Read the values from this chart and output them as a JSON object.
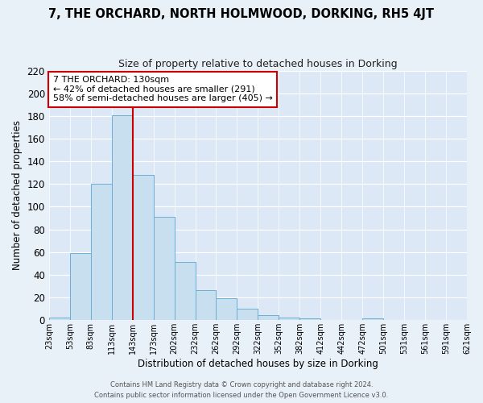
{
  "title": "7, THE ORCHARD, NORTH HOLMWOOD, DORKING, RH5 4JT",
  "subtitle": "Size of property relative to detached houses in Dorking",
  "xlabel": "Distribution of detached houses by size in Dorking",
  "ylabel": "Number of detached properties",
  "bar_values": [
    2,
    59,
    120,
    181,
    128,
    91,
    51,
    26,
    19,
    10,
    4,
    2,
    1,
    0,
    0,
    1
  ],
  "x_tick_labels": [
    "23sqm",
    "53sqm",
    "83sqm",
    "113sqm",
    "143sqm",
    "173sqm",
    "202sqm",
    "232sqm",
    "262sqm",
    "292sqm",
    "322sqm",
    "352sqm",
    "382sqm",
    "412sqm",
    "442sqm",
    "472sqm",
    "501sqm",
    "531sqm",
    "561sqm",
    "591sqm",
    "621sqm"
  ],
  "ylim": [
    0,
    220
  ],
  "yticks": [
    0,
    20,
    40,
    60,
    80,
    100,
    120,
    140,
    160,
    180,
    200,
    220
  ],
  "bar_color": "#c8dff0",
  "bar_edge_color": "#6aaed6",
  "vline_x": 4.0,
  "vline_color": "#cc0000",
  "annotation_title": "7 THE ORCHARD: 130sqm",
  "annotation_line1": "← 42% of detached houses are smaller (291)",
  "annotation_line2": "58% of semi-detached houses are larger (405) →",
  "bg_color": "#dce8f5",
  "fig_bg_color": "#e8f0f8",
  "footer1": "Contains HM Land Registry data © Crown copyright and database right 2024.",
  "footer2": "Contains public sector information licensed under the Open Government Licence v3.0."
}
